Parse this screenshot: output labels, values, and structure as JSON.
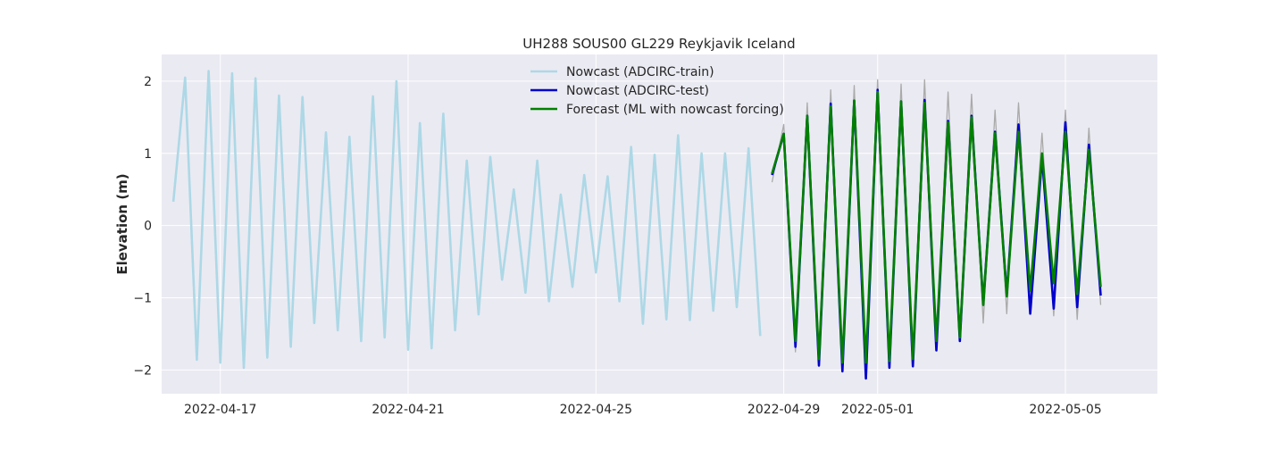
{
  "chart_data": {
    "type": "line",
    "title": "UH288 SOUS00 GL229 Reykjavik Iceland",
    "xlabel": "",
    "ylabel": "Elevation (m)",
    "x_axis_type": "date",
    "xlim": [
      "2022-04-15T18:00",
      "2022-05-06T23:00"
    ],
    "ylim": [
      -2.33,
      2.37
    ],
    "x_ticks": [
      "2022-04-17",
      "2022-04-21",
      "2022-04-25",
      "2022-04-29",
      "2022-05-01",
      "2022-05-05"
    ],
    "y_ticks": [
      -2,
      -1,
      0,
      1,
      2
    ],
    "y_tick_labels": [
      "−2",
      "−1",
      "0",
      "1",
      "2"
    ],
    "grid": true,
    "legend_position": "top-center",
    "background_color": "#eaeaf2",
    "series": [
      {
        "name": "Nowcast (ADCIRC-train)",
        "color": "#add8e6",
        "x": [
          "2022-04-16T00:00",
          "2022-04-16T06:00",
          "2022-04-16T12:00",
          "2022-04-16T18:00",
          "2022-04-17T00:00",
          "2022-04-17T06:00",
          "2022-04-17T12:00",
          "2022-04-17T18:00",
          "2022-04-18T00:00",
          "2022-04-18T06:00",
          "2022-04-18T12:00",
          "2022-04-18T18:00",
          "2022-04-19T00:00",
          "2022-04-19T06:00",
          "2022-04-19T12:00",
          "2022-04-19T18:00",
          "2022-04-20T00:00",
          "2022-04-20T06:00",
          "2022-04-20T12:00",
          "2022-04-20T18:00",
          "2022-04-21T00:00",
          "2022-04-21T06:00",
          "2022-04-21T12:00",
          "2022-04-21T18:00",
          "2022-04-22T00:00",
          "2022-04-22T06:00",
          "2022-04-22T12:00",
          "2022-04-22T18:00",
          "2022-04-23T00:00",
          "2022-04-23T06:00",
          "2022-04-23T12:00",
          "2022-04-23T18:00",
          "2022-04-24T00:00",
          "2022-04-24T06:00",
          "2022-04-24T12:00",
          "2022-04-24T18:00",
          "2022-04-25T00:00",
          "2022-04-25T06:00",
          "2022-04-25T12:00",
          "2022-04-25T18:00",
          "2022-04-26T00:00",
          "2022-04-26T06:00",
          "2022-04-26T12:00",
          "2022-04-26T18:00",
          "2022-04-27T00:00",
          "2022-04-27T06:00",
          "2022-04-27T12:00",
          "2022-04-27T18:00",
          "2022-04-28T00:00",
          "2022-04-28T06:00",
          "2022-04-28T12:00"
        ],
        "values": [
          0.33,
          2.05,
          -1.86,
          2.14,
          -1.9,
          2.11,
          -1.97,
          2.04,
          -1.83,
          1.8,
          -1.68,
          1.78,
          -1.35,
          1.29,
          -1.45,
          1.23,
          -1.6,
          1.79,
          -1.55,
          2.0,
          -1.72,
          1.42,
          -1.7,
          1.55,
          -1.45,
          0.9,
          -1.23,
          0.95,
          -0.75,
          0.5,
          -0.93,
          0.9,
          -1.05,
          0.43,
          -0.85,
          0.7,
          -0.65,
          0.68,
          -1.05,
          1.09,
          -1.36,
          0.98,
          -1.3,
          1.25,
          -1.31,
          1.0,
          -1.18,
          1.0,
          -1.13,
          1.07,
          -1.53
        ]
      },
      {
        "name": "",
        "color": "#aaaaaa",
        "x": [
          "2022-04-28T18:00",
          "2022-04-29T00:00",
          "2022-04-29T06:00",
          "2022-04-29T12:00",
          "2022-04-29T18:00",
          "2022-04-30T00:00",
          "2022-04-30T06:00",
          "2022-04-30T12:00",
          "2022-04-30T18:00",
          "2022-05-01T00:00",
          "2022-05-01T06:00",
          "2022-05-01T12:00",
          "2022-05-01T18:00",
          "2022-05-02T00:00",
          "2022-05-02T06:00",
          "2022-05-02T12:00",
          "2022-05-02T18:00",
          "2022-05-03T00:00",
          "2022-05-03T06:00",
          "2022-05-03T12:00",
          "2022-05-03T18:00",
          "2022-05-04T00:00",
          "2022-05-04T06:00",
          "2022-05-04T12:00",
          "2022-05-04T18:00",
          "2022-05-05T00:00",
          "2022-05-05T06:00",
          "2022-05-05T12:00",
          "2022-05-05T18:00"
        ],
        "values": [
          0.6,
          1.4,
          -1.75,
          1.7,
          -1.95,
          1.88,
          -2.0,
          1.94,
          -2.1,
          2.02,
          -1.95,
          1.96,
          -1.85,
          2.02,
          -1.7,
          1.85,
          -1.55,
          1.82,
          -1.35,
          1.6,
          -1.22,
          1.7,
          -1.08,
          1.28,
          -1.25,
          1.6,
          -1.3,
          1.35,
          -1.1
        ]
      },
      {
        "name": "Nowcast (ADCIRC-test)",
        "color": "#0000cc",
        "x": [
          "2022-04-28T18:00",
          "2022-04-29T00:00",
          "2022-04-29T06:00",
          "2022-04-29T12:00",
          "2022-04-29T18:00",
          "2022-04-30T00:00",
          "2022-04-30T06:00",
          "2022-04-30T12:00",
          "2022-04-30T18:00",
          "2022-05-01T00:00",
          "2022-05-01T06:00",
          "2022-05-01T12:00",
          "2022-05-01T18:00",
          "2022-05-02T00:00",
          "2022-05-02T06:00",
          "2022-05-02T12:00",
          "2022-05-02T18:00",
          "2022-05-03T00:00",
          "2022-05-03T06:00",
          "2022-05-03T12:00",
          "2022-05-03T18:00",
          "2022-05-04T00:00",
          "2022-05-04T06:00",
          "2022-05-04T12:00",
          "2022-05-04T18:00",
          "2022-05-05T00:00",
          "2022-05-05T06:00",
          "2022-05-05T12:00",
          "2022-05-05T18:00"
        ],
        "values": [
          0.7,
          1.27,
          -1.68,
          1.52,
          -1.94,
          1.69,
          -2.02,
          1.73,
          -2.12,
          1.88,
          -1.97,
          1.72,
          -1.95,
          1.74,
          -1.73,
          1.45,
          -1.6,
          1.52,
          -1.08,
          1.3,
          -0.95,
          1.4,
          -1.22,
          0.95,
          -1.15,
          1.43,
          -1.13,
          1.12,
          -0.97
        ]
      },
      {
        "name": "Forecast (ML with nowcast forcing)",
        "color": "#008000",
        "x": [
          "2022-04-28T18:00",
          "2022-04-29T00:00",
          "2022-04-29T06:00",
          "2022-04-29T12:00",
          "2022-04-29T18:00",
          "2022-04-30T00:00",
          "2022-04-30T06:00",
          "2022-04-30T12:00",
          "2022-04-30T18:00",
          "2022-05-01T00:00",
          "2022-05-01T06:00",
          "2022-05-01T12:00",
          "2022-05-01T18:00",
          "2022-05-02T00:00",
          "2022-05-02T06:00",
          "2022-05-02T12:00",
          "2022-05-02T18:00",
          "2022-05-03T00:00",
          "2022-05-03T06:00",
          "2022-05-03T12:00",
          "2022-05-03T18:00",
          "2022-05-04T00:00",
          "2022-05-04T06:00",
          "2022-05-04T12:00",
          "2022-05-04T18:00",
          "2022-05-05T00:00",
          "2022-05-05T06:00",
          "2022-05-05T12:00",
          "2022-05-05T18:00"
        ],
        "values": [
          0.72,
          1.27,
          -1.6,
          1.52,
          -1.85,
          1.65,
          -1.9,
          1.73,
          -1.9,
          1.85,
          -1.88,
          1.72,
          -1.85,
          1.7,
          -1.6,
          1.43,
          -1.55,
          1.5,
          -1.1,
          1.28,
          -0.98,
          1.3,
          -0.9,
          1.0,
          -0.8,
          1.3,
          -0.95,
          1.05,
          -0.85
        ]
      }
    ]
  }
}
